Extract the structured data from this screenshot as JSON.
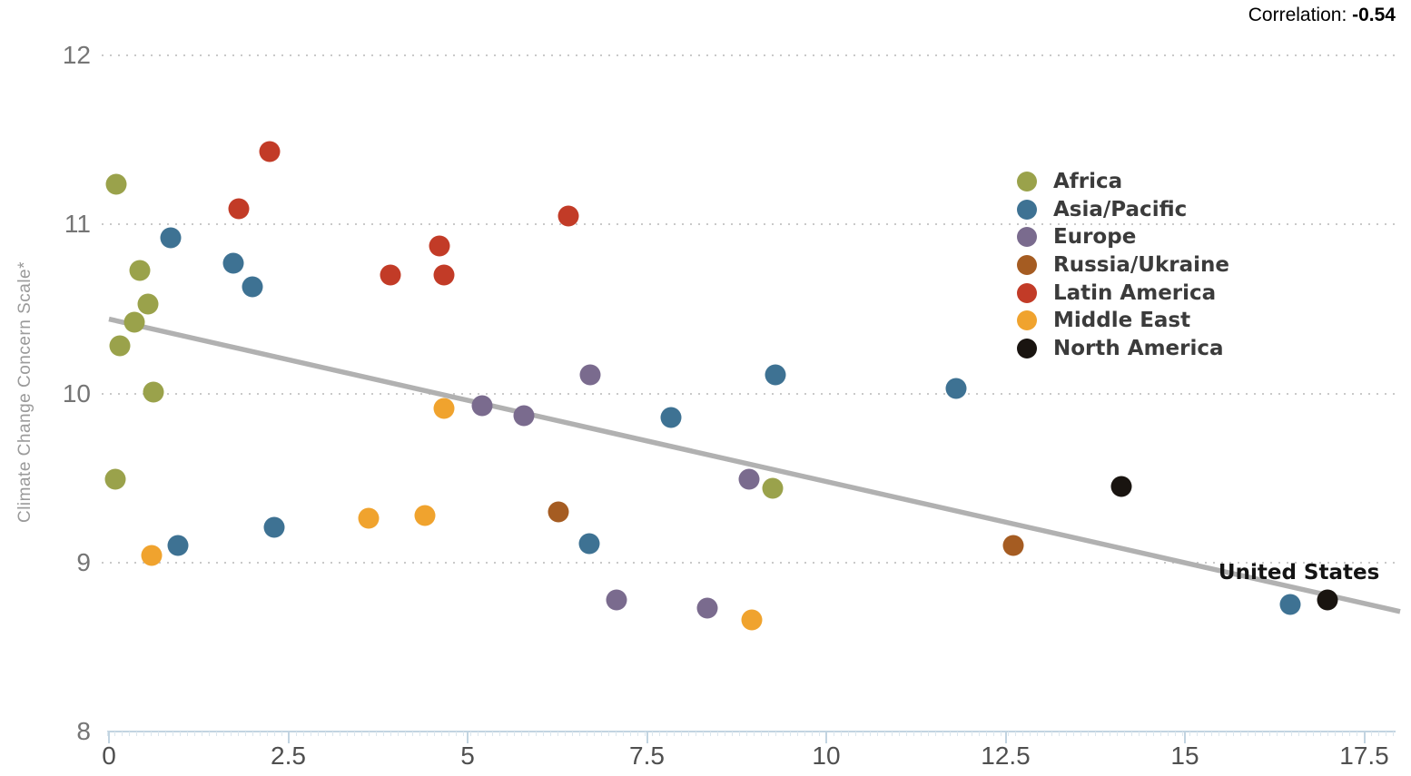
{
  "header": {
    "correlation_label": "Correlation: ",
    "correlation_value": "-0.54"
  },
  "chart_data": {
    "type": "scatter",
    "title": "",
    "xlabel": "",
    "ylabel": "Climate Change Concern Scale*",
    "xlim": [
      0,
      18.2
    ],
    "ylim": [
      8,
      12
    ],
    "x_ticks": [
      0,
      2.5,
      5,
      7.5,
      10,
      12.5,
      15,
      17.5
    ],
    "x_tick_labels": [
      "0",
      "2.5",
      "5",
      "7.5",
      "10",
      "12.5",
      "15",
      "17.5"
    ],
    "y_ticks": [
      8,
      9,
      10,
      11,
      12
    ],
    "y_tick_labels": [
      "8",
      "9",
      "10",
      "11",
      "12"
    ],
    "grid": "horizontal-dotted",
    "legend_position": "right-upper",
    "correlation": -0.54,
    "trendline": {
      "x1": 0,
      "y1": 10.44,
      "x2": 18.0,
      "y2": 8.71,
      "color": "#b1b1b1"
    },
    "series": [
      {
        "name": "Africa",
        "color": "#9aa24b",
        "points": [
          [
            0.1,
            11.24
          ],
          [
            0.43,
            10.73
          ],
          [
            0.55,
            10.53
          ],
          [
            0.35,
            10.42
          ],
          [
            0.15,
            10.28
          ],
          [
            0.62,
            10.01
          ],
          [
            0.09,
            9.49
          ],
          [
            9.25,
            9.44
          ]
        ]
      },
      {
        "name": "Asia/Pacific",
        "color": "#3e7293",
        "points": [
          [
            0.86,
            10.92
          ],
          [
            1.74,
            10.77
          ],
          [
            2.0,
            10.63
          ],
          [
            9.29,
            10.11
          ],
          [
            11.81,
            10.03
          ],
          [
            7.83,
            9.86
          ],
          [
            2.31,
            9.21
          ],
          [
            0.96,
            9.1
          ],
          [
            6.7,
            9.11
          ],
          [
            16.47,
            8.75
          ]
        ]
      },
      {
        "name": "Europe",
        "color": "#7a6b8e",
        "points": [
          [
            6.71,
            10.11
          ],
          [
            5.2,
            9.93
          ],
          [
            5.79,
            9.87
          ],
          [
            8.92,
            9.49
          ],
          [
            7.08,
            8.78
          ],
          [
            8.34,
            8.73
          ]
        ]
      },
      {
        "name": "Russia/Ukraine",
        "color": "#a55c22",
        "points": [
          [
            6.26,
            9.3
          ],
          [
            12.61,
            9.1
          ]
        ]
      },
      {
        "name": "Latin America",
        "color": "#c23b27",
        "points": [
          [
            2.24,
            11.43
          ],
          [
            1.81,
            11.09
          ],
          [
            6.4,
            11.05
          ],
          [
            4.61,
            10.87
          ],
          [
            3.93,
            10.7
          ],
          [
            4.67,
            10.7
          ]
        ]
      },
      {
        "name": "Middle East",
        "color": "#f0a32e",
        "points": [
          [
            4.67,
            9.91
          ],
          [
            3.62,
            9.26
          ],
          [
            4.4,
            9.28
          ],
          [
            0.59,
            9.04
          ],
          [
            8.96,
            8.66
          ]
        ]
      },
      {
        "name": "North America",
        "color": "#191410",
        "points": [
          [
            14.12,
            9.45
          ],
          [
            16.99,
            8.78
          ]
        ]
      }
    ],
    "annotations": [
      {
        "text": "United States",
        "x": 16.59,
        "y": 8.94
      }
    ]
  }
}
